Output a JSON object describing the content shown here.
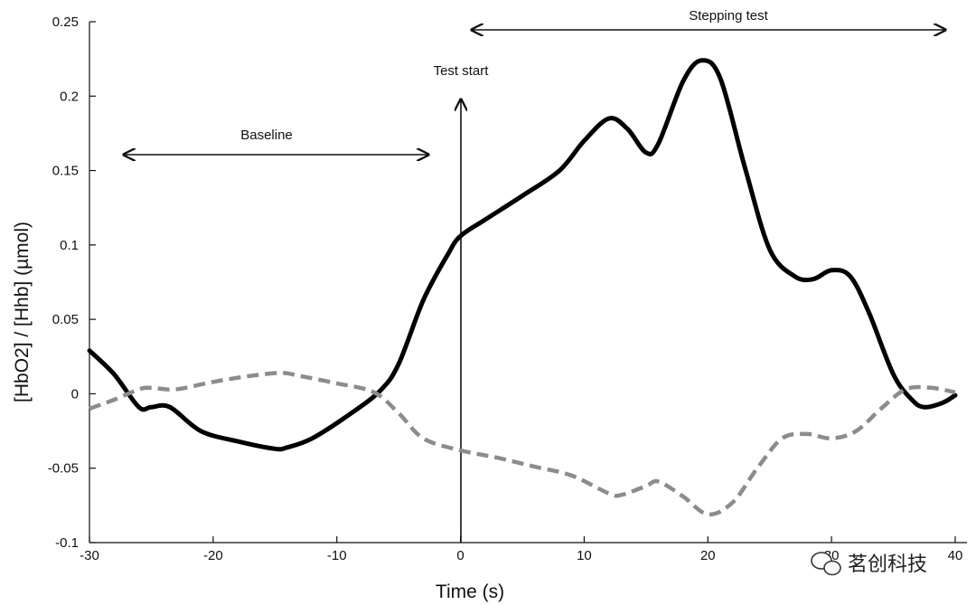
{
  "chart_data": {
    "type": "line",
    "xlabel": "Time (s)",
    "ylabel": "[HbO2] / [Hhb] (µmol)",
    "xlim": [
      -30,
      40
    ],
    "ylim": [
      -0.1,
      0.25
    ],
    "x_ticks": [
      "-30",
      "-20",
      "-10",
      "0",
      "10",
      "20",
      "30",
      "40"
    ],
    "y_ticks": [
      "-0.1",
      "-0.05",
      "0",
      "0.05",
      "0.1",
      "0.15",
      "0.2",
      "0.25"
    ],
    "grid": false,
    "series": [
      {
        "color": "#000000",
        "style": "solid",
        "x": [
          -30,
          -28,
          -26,
          -25,
          -23.5,
          -21,
          -18,
          -15,
          -14,
          -12,
          -9,
          -6.5,
          -5,
          -3,
          -1,
          0,
          2,
          5,
          8,
          10,
          12,
          13.5,
          15,
          16,
          18,
          19.5,
          21,
          23,
          25,
          27,
          28.5,
          30,
          31.5,
          33,
          35,
          36.5,
          37.5,
          39,
          40
        ],
        "y": [
          0.029,
          0.013,
          -0.009,
          -0.009,
          -0.009,
          -0.025,
          -0.032,
          -0.037,
          -0.036,
          -0.03,
          -0.014,
          0.002,
          0.02,
          0.063,
          0.094,
          0.106,
          0.117,
          0.133,
          0.15,
          0.17,
          0.185,
          0.178,
          0.162,
          0.168,
          0.21,
          0.224,
          0.212,
          0.152,
          0.097,
          0.079,
          0.077,
          0.083,
          0.079,
          0.055,
          0.013,
          -0.004,
          -0.009,
          -0.006,
          -0.001
        ]
      },
      {
        "color": "#8c8c8c",
        "style": "dashed",
        "x": [
          -30,
          -28,
          -26,
          -25,
          -23,
          -20,
          -17,
          -14.5,
          -13,
          -10,
          -7,
          -5,
          -3,
          0,
          3,
          6,
          9,
          12,
          13,
          15,
          16,
          18,
          20,
          22,
          24,
          26,
          28,
          30,
          32,
          34,
          36,
          38,
          40
        ],
        "y": [
          -0.01,
          -0.004,
          0.003,
          0.004,
          0.003,
          0.008,
          0.012,
          0.014,
          0.012,
          0.007,
          0.001,
          -0.013,
          -0.03,
          -0.038,
          -0.043,
          -0.049,
          -0.055,
          -0.067,
          -0.068,
          -0.062,
          -0.059,
          -0.069,
          -0.081,
          -0.073,
          -0.05,
          -0.03,
          -0.027,
          -0.03,
          -0.025,
          -0.01,
          0.003,
          0.004,
          0.001
        ]
      }
    ],
    "annotations": {
      "baseline": "Baseline",
      "test_start": "Test start",
      "stepping": "Stepping test"
    }
  },
  "watermark": "茗创科技"
}
